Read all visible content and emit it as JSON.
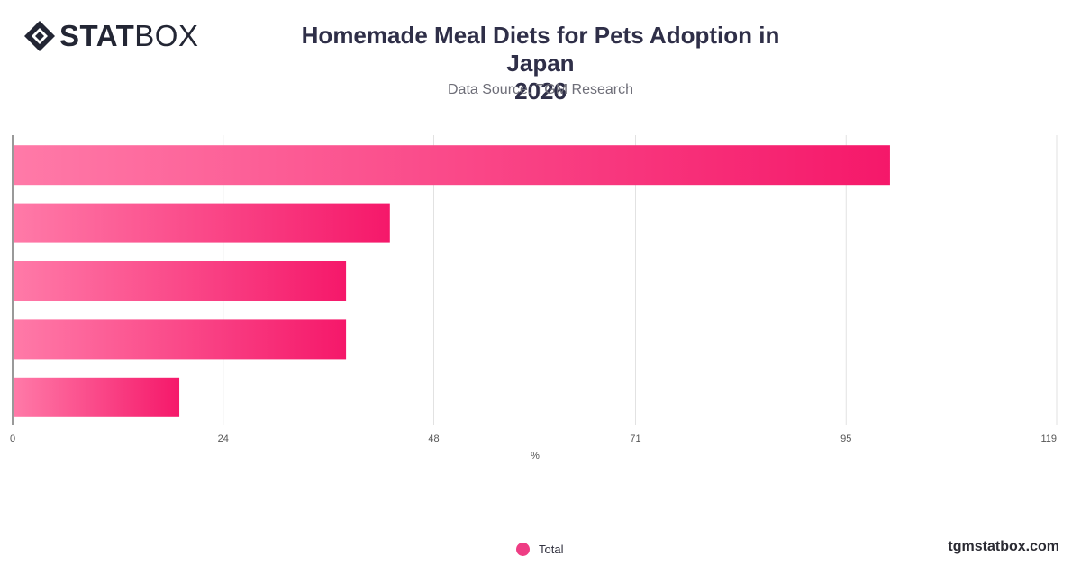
{
  "brand": {
    "logo_bold": "STAT",
    "logo_light": "BOX",
    "website": "tgmstatbox.com"
  },
  "header": {
    "title_line1": "Homemade Meal Diets for Pets Adoption in Japan",
    "title_line2": "2026",
    "subtitle": "Data Source: TGM Research"
  },
  "legend": {
    "label": "Total",
    "color": "#ee3d84"
  },
  "chart_data": {
    "type": "bar",
    "orientation": "horizontal",
    "title": "Homemade Meal Diets for Pets Adoption in Japan 2026",
    "subtitle": "Data Source: TGM Research",
    "xlabel": "%",
    "ylabel": "",
    "xlim": [
      0,
      119
    ],
    "x_ticks": [
      0,
      24,
      48,
      71,
      95,
      119
    ],
    "grid": true,
    "legend_position": "bottom",
    "series": [
      {
        "name": "Total",
        "values": [
          100,
          43,
          38,
          38,
          19
        ],
        "color_start": "#ff7aa8",
        "color_end": "#f5186a"
      }
    ]
  }
}
